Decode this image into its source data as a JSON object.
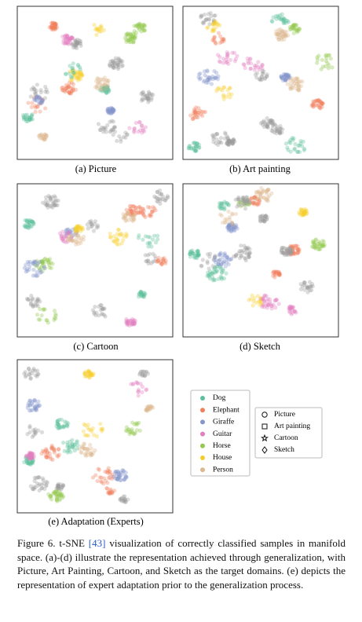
{
  "panels": [
    {
      "caption": "(a) Picture"
    },
    {
      "caption": "(b) Art painting"
    },
    {
      "caption": "(c) Cartoon"
    },
    {
      "caption": "(d) Sketch"
    },
    {
      "caption": "(e) Adaptation (Experts)"
    }
  ],
  "legend": {
    "classes": [
      {
        "name": "Dog",
        "color": "#5dbf9c"
      },
      {
        "name": "Elephant",
        "color": "#f07f5c"
      },
      {
        "name": "Giraffe",
        "color": "#8596cc"
      },
      {
        "name": "Guitar",
        "color": "#e27dbf"
      },
      {
        "name": "Horse",
        "color": "#93c94e"
      },
      {
        "name": "House",
        "color": "#f5cd2a"
      },
      {
        "name": "Person",
        "color": "#dcb88f"
      }
    ],
    "domains": [
      {
        "name": "Picture",
        "marker": "circle"
      },
      {
        "name": "Art painting",
        "marker": "square"
      },
      {
        "name": "Cartoon",
        "marker": "star"
      },
      {
        "name": "Sketch",
        "marker": "diamond"
      }
    ]
  },
  "figure_caption": {
    "prefix": "Figure 6. t-SNE ",
    "ref": "[43]",
    "text": " visualization of correctly classified samples in manifold space. (a)-(d) illustrate the representation achieved through generalization, with Picture, Art Painting, Cartoon, and Sketch as the target domains. (e) depicts the representation of expert adaptation prior to the generalization process."
  }
}
